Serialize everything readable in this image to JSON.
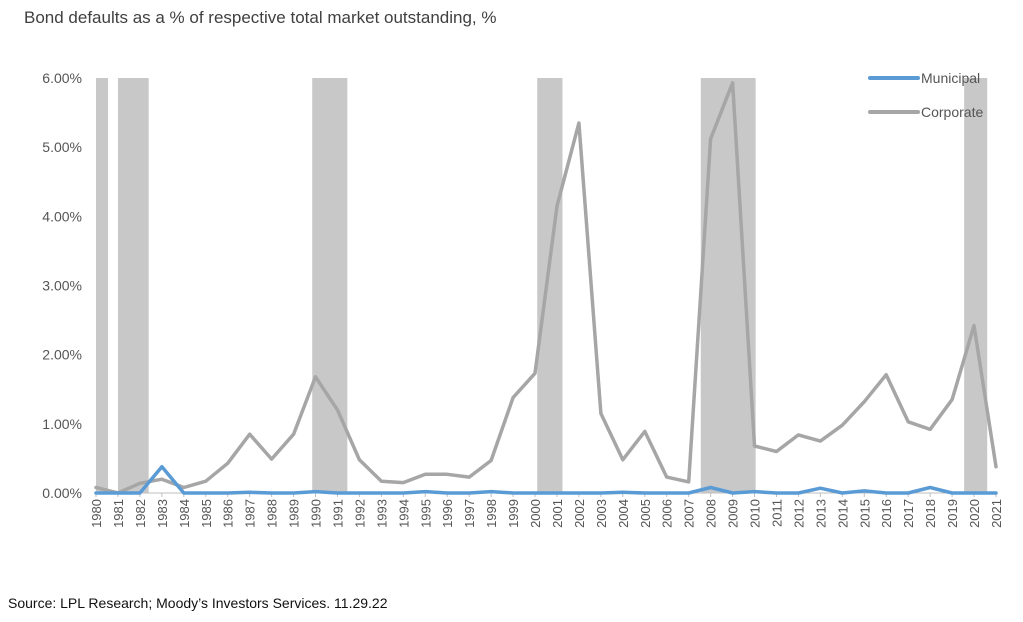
{
  "title": "Bond defaults as a % of respective total market outstanding, %",
  "source": "Source:  LPL Research; Moody’s Investors Services.  11.29.22",
  "colors": {
    "municipal": "#5b9bd5",
    "corporate": "#a6a6a6",
    "shading": "#c8c8c8"
  },
  "chart_data": {
    "type": "line",
    "title": "Bond defaults as a % of respective total market outstanding, %",
    "x": [
      "1980",
      "1981",
      "1982",
      "1983",
      "1984",
      "1985",
      "1986",
      "1987",
      "1988",
      "1989",
      "1990",
      "1991",
      "1992",
      "1993",
      "1994",
      "1995",
      "1996",
      "1997",
      "1998",
      "1999",
      "2000",
      "2001",
      "2002",
      "2003",
      "2004",
      "2005",
      "2006",
      "2007",
      "2008",
      "2009",
      "2010",
      "2011",
      "2012",
      "2013",
      "2014",
      "2015",
      "2016",
      "2017",
      "2018",
      "2019",
      "2020",
      "2021"
    ],
    "ylim": [
      0,
      6
    ],
    "y_ticks": [
      "0.00%",
      "1.00%",
      "2.00%",
      "3.00%",
      "4.00%",
      "5.00%",
      "6.00%"
    ],
    "legend_position": "top-right",
    "grid": false,
    "series": [
      {
        "name": "Municipal",
        "values": [
          0.0,
          0.0,
          0.0,
          0.38,
          0.0,
          0.0,
          0.0,
          0.01,
          0.0,
          0.0,
          0.02,
          0.0,
          0.0,
          0.0,
          0.0,
          0.02,
          0.0,
          0.0,
          0.02,
          0.0,
          0.0,
          0.0,
          0.0,
          0.0,
          0.01,
          0.0,
          0.0,
          0.0,
          0.08,
          0.0,
          0.02,
          0.0,
          0.0,
          0.07,
          0.0,
          0.03,
          0.0,
          0.0,
          0.08,
          0.0,
          0.0,
          0.0
        ]
      },
      {
        "name": "Corporate",
        "values": [
          0.08,
          0.0,
          0.14,
          0.2,
          0.08,
          0.17,
          0.43,
          0.85,
          0.49,
          0.85,
          1.68,
          1.2,
          0.48,
          0.17,
          0.15,
          0.27,
          0.27,
          0.23,
          0.47,
          1.38,
          1.73,
          4.15,
          5.35,
          1.15,
          0.48,
          0.89,
          0.23,
          0.16,
          5.12,
          5.93,
          0.68,
          0.6,
          0.84,
          0.75,
          0.98,
          1.32,
          1.71,
          1.03,
          0.92,
          1.35,
          2.42,
          0.38
        ]
      }
    ],
    "recession_shading": [
      {
        "start": 1980.0,
        "end": 1980.55
      },
      {
        "start": 1981.0,
        "end": 1982.4
      },
      {
        "start": 1989.85,
        "end": 1991.45
      },
      {
        "start": 2000.1,
        "end": 2001.25
      },
      {
        "start": 2007.55,
        "end": 2010.05
      },
      {
        "start": 2019.55,
        "end": 2020.6
      }
    ]
  }
}
